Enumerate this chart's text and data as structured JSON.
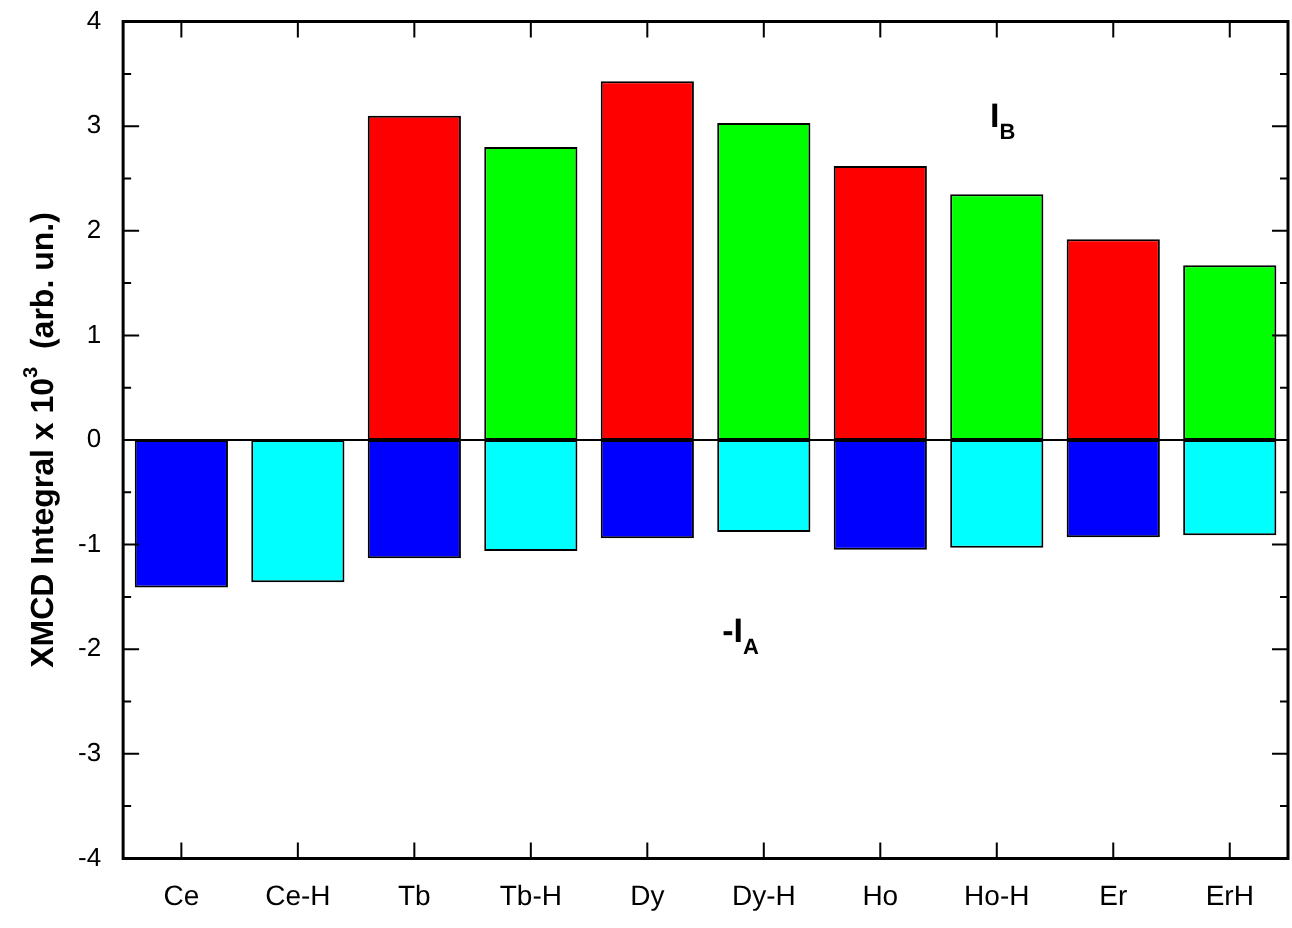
{
  "chart_data": {
    "type": "bar",
    "ylabel": "XMCD Integral x 10$^{3}$  (arb. un.)",
    "categories": [
      "Ce",
      "Ce-H",
      "Tb",
      "Tb-H",
      "Dy",
      "Dy-H",
      "Ho",
      "Ho-H",
      "Er",
      "ErH"
    ],
    "stacked": true,
    "series": [
      {
        "colors": [
          "#0000ff",
          "#00ffff",
          "#0000ff",
          "#00ffff",
          "#0000ff",
          "#00ffff",
          "#0000ff",
          "#00ffff",
          "#0000ff",
          "#00ffff"
        ],
        "values": [
          -1.41,
          -1.36,
          -1.13,
          -1.06,
          -0.94,
          -0.88,
          -1.05,
          -1.03,
          -0.93,
          -0.91
        ]
      },
      {
        "colors": [
          "#ff0000",
          "#00ff00",
          "#ff0000",
          "#00ff00",
          "#ff0000",
          "#00ff00",
          "#ff0000",
          "#00ff00",
          "#ff0000",
          "#00ff00"
        ],
        "values": [
          null,
          null,
          3.1,
          2.8,
          3.43,
          3.03,
          2.62,
          2.35,
          1.92,
          1.67
        ]
      }
    ],
    "ylim": [
      -4,
      4
    ],
    "yticks": [
      -4,
      {
        "value": -3.5,
        "label": null
      },
      -3,
      {
        "value": -2.5,
        "label": null
      },
      -2,
      {
        "value": -1.5,
        "label": null
      },
      -1,
      {
        "value": -0.5,
        "label": null
      },
      0,
      {
        "value": 0.5,
        "label": null
      },
      1,
      {
        "value": 1.5,
        "label": null
      },
      2,
      {
        "value": 2.5,
        "label": null
      },
      3,
      {
        "value": 3.5,
        "label": null
      },
      4
    ],
    "annotations": [
      "I$_{B}$",
      "-I$_{A}$"
    ]
  }
}
